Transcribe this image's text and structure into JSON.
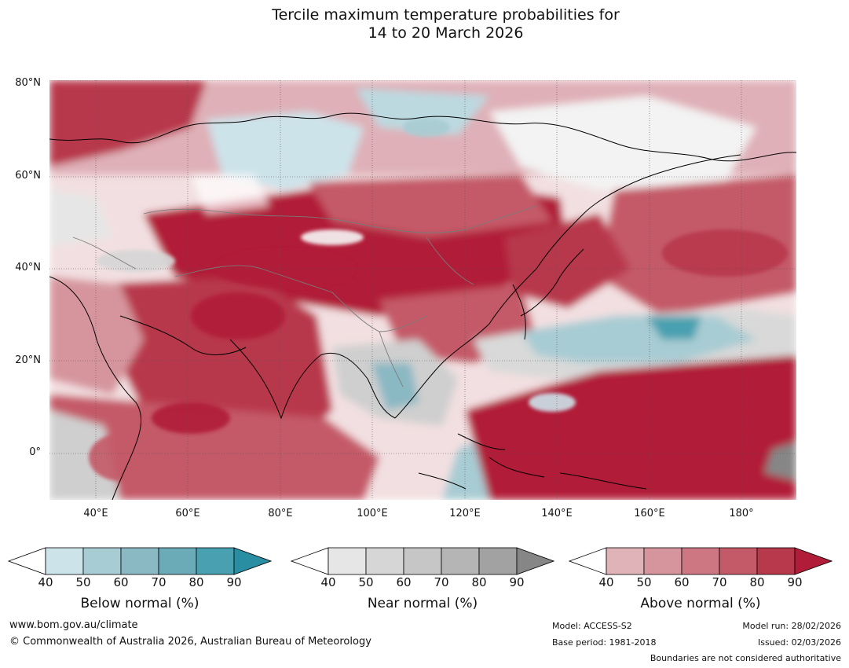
{
  "title": {
    "line1": "Tercile maximum temperature probabilities for",
    "line2": "14 to 20 March 2026"
  },
  "map": {
    "lat_labels": [
      "80°N",
      "60°N",
      "40°N",
      "20°N",
      "0°"
    ],
    "lon_labels": [
      "40°E",
      "60°E",
      "80°E",
      "100°E",
      "120°E",
      "140°E",
      "160°E",
      "180°"
    ]
  },
  "colorbars": [
    {
      "name": "below",
      "label": "Below normal (%)",
      "ticks": [
        "40",
        "50",
        "60",
        "70",
        "80",
        "90"
      ],
      "colors": [
        "#ffffff",
        "#cce3ea",
        "#a8ccd3",
        "#8ab8c3",
        "#6aabb7",
        "#48a0b0",
        "#2a8ea2"
      ]
    },
    {
      "name": "near",
      "label": "Near normal (%)",
      "ticks": [
        "40",
        "50",
        "60",
        "70",
        "80",
        "90"
      ],
      "colors": [
        "#ffffff",
        "#e6e6e6",
        "#d6d6d6",
        "#c6c6c6",
        "#b5b5b5",
        "#a2a2a2",
        "#868686"
      ]
    },
    {
      "name": "above",
      "label": "Above normal (%)",
      "ticks": [
        "40",
        "50",
        "60",
        "70",
        "80",
        "90"
      ],
      "colors": [
        "#ffffff",
        "#e0b3b9",
        "#d6959d",
        "#cc7782",
        "#c45a68",
        "#b8384c",
        "#b11c38"
      ]
    }
  ],
  "footer": {
    "website": "www.bom.gov.au/climate",
    "copyright": "© Commonwealth of Australia 2026, Australian Bureau of Meteorology",
    "model": "Model: ACCESS-S2",
    "base_period": "Base period: 1981-2018",
    "model_run": "Model run: 28/02/2026",
    "issued": "Issued: 02/03/2026",
    "disclaimer": "Boundaries are not considered authoritative"
  }
}
